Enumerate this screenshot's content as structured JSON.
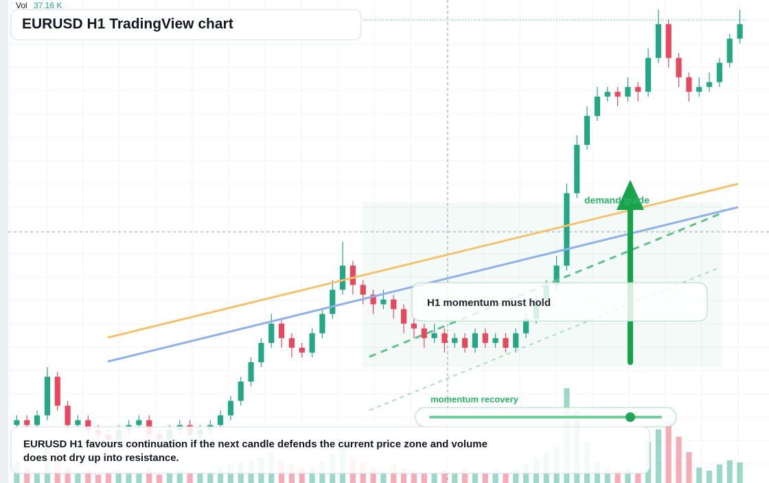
{
  "chart_data": {
    "type": "candlestick",
    "title": "EURUSD H1 TradingView chart",
    "volume_label": "Vol",
    "volume_last": "37.16 K",
    "up_color": "#22a884",
    "down_color": "#e8475c",
    "ylim": [
      0,
      100
    ],
    "vlim": [
      0,
      100
    ],
    "ohlc": [
      [
        12,
        14,
        11,
        13
      ],
      [
        13,
        14,
        11,
        12
      ],
      [
        12,
        15,
        11,
        14
      ],
      [
        14,
        24,
        13,
        22
      ],
      [
        22,
        23,
        15,
        16
      ],
      [
        16,
        17,
        11,
        12
      ],
      [
        12,
        14,
        11,
        13
      ],
      [
        13,
        14,
        10,
        11
      ],
      [
        11,
        12,
        9,
        10
      ],
      [
        10,
        11,
        8,
        9
      ],
      [
        9,
        12,
        8,
        11
      ],
      [
        11,
        13,
        10,
        12
      ],
      [
        12,
        14,
        11,
        13
      ],
      [
        13,
        14,
        9,
        10
      ],
      [
        10,
        11,
        8,
        9
      ],
      [
        9,
        12,
        8,
        11
      ],
      [
        11,
        13,
        10,
        12
      ],
      [
        12,
        13,
        9,
        10
      ],
      [
        10,
        12,
        9,
        11
      ],
      [
        11,
        13,
        10,
        12
      ],
      [
        12,
        15,
        11,
        14
      ],
      [
        14,
        18,
        13,
        17
      ],
      [
        17,
        22,
        16,
        21
      ],
      [
        21,
        26,
        20,
        25
      ],
      [
        25,
        30,
        24,
        29
      ],
      [
        29,
        35,
        28,
        33
      ],
      [
        33,
        34,
        28,
        30
      ],
      [
        30,
        31,
        26,
        28
      ],
      [
        28,
        29,
        26,
        27
      ],
      [
        27,
        32,
        26,
        31
      ],
      [
        31,
        36,
        30,
        35
      ],
      [
        35,
        42,
        34,
        40
      ],
      [
        40,
        50,
        39,
        45
      ],
      [
        45,
        46,
        39,
        41
      ],
      [
        41,
        42,
        37,
        39
      ],
      [
        39,
        40,
        35,
        37
      ],
      [
        37,
        40,
        36,
        38
      ],
      [
        38,
        39,
        34,
        36
      ],
      [
        36,
        37,
        31,
        33
      ],
      [
        33,
        34,
        30,
        32
      ],
      [
        32,
        33,
        28,
        30
      ],
      [
        30,
        33,
        29,
        31
      ],
      [
        31,
        32,
        27,
        29
      ],
      [
        29,
        31,
        28,
        30
      ],
      [
        30,
        31,
        27,
        28
      ],
      [
        28,
        32,
        27,
        31
      ],
      [
        31,
        32,
        28,
        29
      ],
      [
        29,
        31,
        28,
        30
      ],
      [
        30,
        31,
        27,
        28
      ],
      [
        28,
        32,
        27,
        31
      ],
      [
        31,
        35,
        30,
        34
      ],
      [
        34,
        39,
        33,
        38
      ],
      [
        38,
        42,
        37,
        41
      ],
      [
        41,
        47,
        40,
        45
      ],
      [
        45,
        62,
        44,
        60
      ],
      [
        60,
        72,
        59,
        70
      ],
      [
        70,
        78,
        69,
        76
      ],
      [
        76,
        82,
        75,
        80
      ],
      [
        80,
        82,
        79,
        81
      ],
      [
        81,
        82,
        78,
        80
      ],
      [
        80,
        84,
        79,
        82
      ],
      [
        82,
        83,
        79,
        81
      ],
      [
        81,
        90,
        80,
        88
      ],
      [
        88,
        98,
        87,
        95
      ],
      [
        95,
        96,
        86,
        88
      ],
      [
        88,
        89,
        82,
        84
      ],
      [
        84,
        85,
        79,
        81
      ],
      [
        81,
        84,
        80,
        82
      ],
      [
        82,
        85,
        81,
        83
      ],
      [
        83,
        88,
        82,
        87
      ],
      [
        87,
        93,
        86,
        92
      ],
      [
        92,
        98,
        91,
        95
      ]
    ],
    "volume": [
      20,
      15,
      10,
      40,
      30,
      15,
      10,
      12,
      8,
      10,
      12,
      9,
      10,
      14,
      8,
      10,
      12,
      9,
      10,
      11,
      15,
      18,
      20,
      22,
      25,
      30,
      22,
      18,
      15,
      16,
      20,
      28,
      35,
      25,
      20,
      15,
      12,
      18,
      14,
      12,
      10,
      9,
      12,
      10,
      14,
      11,
      10,
      12,
      9,
      13,
      18,
      25,
      30,
      35,
      92,
      70,
      40,
      20,
      15,
      12,
      14,
      10,
      40,
      52,
      58,
      45,
      30,
      15,
      12,
      18,
      22,
      20
    ],
    "annotations": [
      "demand guide",
      "H1 momentum must hold",
      "momentum recovery",
      "EURUSD H1 favours continuation if the next candle defends the current price zone and volume",
      "does not dry up into resistance."
    ]
  }
}
